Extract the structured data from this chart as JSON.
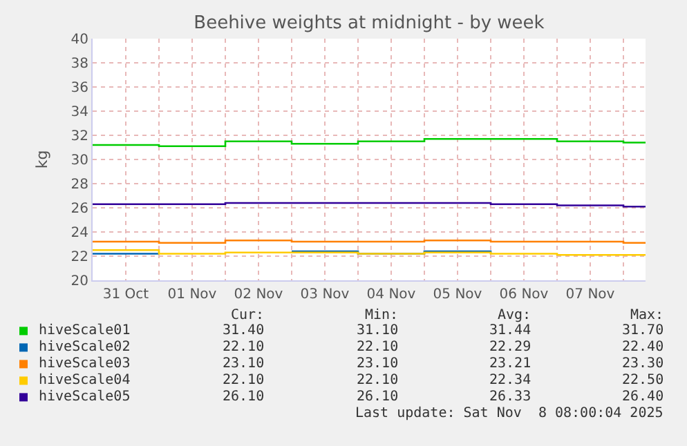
{
  "chart_data": {
    "type": "step",
    "title": "Beehive weights at midnight - by week",
    "ylabel": "kg",
    "x": [
      "2025-10-31",
      "2025-11-01",
      "2025-11-02",
      "2025-11-03",
      "2025-11-04",
      "2025-11-05",
      "2025-11-06",
      "2025-11-07",
      "2025-11-08",
      "2025-11-08T08:00"
    ],
    "series": [
      {
        "name": "hiveScale01",
        "color": "#00cc00",
        "values": [
          31.2,
          31.1,
          31.5,
          31.3,
          31.5,
          31.7,
          31.7,
          31.5,
          31.4,
          31.4
        ]
      },
      {
        "name": "hiveScale02",
        "color": "#0066b3",
        "values": [
          22.2,
          22.2,
          null,
          22.4,
          22.2,
          22.4,
          22.2,
          null,
          null,
          null
        ]
      },
      {
        "name": "hiveScale03",
        "color": "#ff8000",
        "values": [
          23.2,
          23.1,
          23.3,
          23.2,
          23.2,
          23.3,
          23.2,
          23.2,
          23.1,
          23.1
        ]
      },
      {
        "name": "hiveScale04",
        "color": "#ffcc00",
        "values": [
          22.5,
          22.2,
          22.3,
          22.3,
          22.2,
          22.3,
          22.2,
          22.1,
          22.1,
          22.1
        ]
      },
      {
        "name": "hiveScale05",
        "color": "#330099",
        "values": [
          26.3,
          26.3,
          26.4,
          26.4,
          26.4,
          26.4,
          26.3,
          26.2,
          26.1,
          26.1
        ]
      }
    ],
    "xlim": [
      "2025-10-31",
      "2025-11-08T08:00"
    ],
    "xticks": [
      {
        "value": "2025-10-31T12:00",
        "label": "31 Oct"
      },
      {
        "value": "2025-11-01T12:00",
        "label": "01 Nov"
      },
      {
        "value": "2025-11-02T12:00",
        "label": "02 Nov"
      },
      {
        "value": "2025-11-03T12:00",
        "label": "03 Nov"
      },
      {
        "value": "2025-11-04T12:00",
        "label": "04 Nov"
      },
      {
        "value": "2025-11-05T12:00",
        "label": "05 Nov"
      },
      {
        "value": "2025-11-06T12:00",
        "label": "06 Nov"
      },
      {
        "value": "2025-11-07T12:00",
        "label": "07 Nov"
      },
      {
        "value": "2025-11-01",
        "label": null
      },
      {
        "value": "2025-11-02",
        "label": null
      },
      {
        "value": "2025-11-03",
        "label": null
      },
      {
        "value": "2025-11-04",
        "label": null
      },
      {
        "value": "2025-11-05",
        "label": null
      },
      {
        "value": "2025-11-06",
        "label": null
      },
      {
        "value": "2025-11-07",
        "label": null
      },
      {
        "value": "2025-11-08",
        "label": null
      }
    ],
    "ylim": [
      20,
      40
    ],
    "yticks": [
      20,
      22,
      24,
      26,
      28,
      30,
      32,
      34,
      36,
      38,
      40
    ],
    "grid": true,
    "legend": "bottom left",
    "marker": "none",
    "line_style": "solid",
    "annotations": [
      "Cur:",
      "Min:",
      "Avg:",
      "Max:",
      "31.40",
      "31.10",
      "31.44",
      "31.70",
      "22.10",
      "22.10",
      "22.29",
      "22.40",
      "23.10",
      "23.10",
      "23.21",
      "23.30",
      "22.10",
      "22.10",
      "22.34",
      "22.50",
      "26.10",
      "26.10",
      "26.33",
      "26.40",
      "Last update: Sat Nov  8 08:00:04 2025"
    ]
  }
}
